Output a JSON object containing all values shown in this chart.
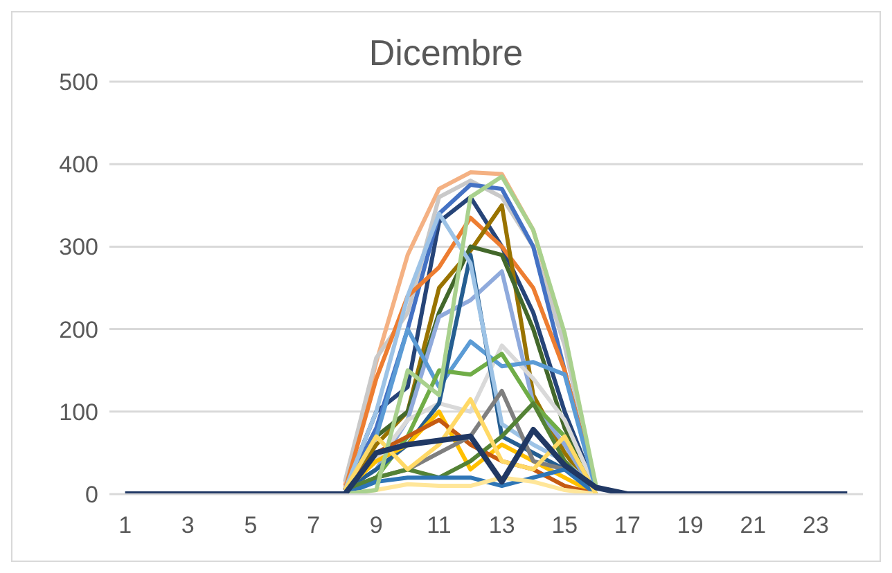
{
  "chart_data": {
    "type": "line",
    "title": "Dicembre",
    "x": [
      1,
      2,
      3,
      4,
      5,
      6,
      7,
      8,
      9,
      10,
      11,
      12,
      13,
      14,
      15,
      16,
      17,
      18,
      19,
      20,
      21,
      22,
      23,
      24
    ],
    "xlim": [
      0.5,
      24.5
    ],
    "xticks": [
      1,
      3,
      5,
      7,
      9,
      11,
      13,
      15,
      17,
      19,
      21,
      23
    ],
    "ylim": [
      0,
      500
    ],
    "yticks": [
      0,
      100,
      200,
      300,
      400,
      500
    ],
    "grid": "y",
    "marker": "none",
    "line_style": "solid",
    "series": [
      {
        "color": "#f4b183",
        "values": [
          null,
          null,
          null,
          null,
          null,
          null,
          null,
          10,
          160,
          290,
          370,
          390,
          388,
          320,
          190,
          5,
          null,
          null,
          null,
          null,
          null,
          null,
          null,
          null
        ]
      },
      {
        "color": "#c9c9c9",
        "values": [
          null,
          null,
          null,
          null,
          null,
          null,
          null,
          15,
          165,
          220,
          360,
          380,
          360,
          300,
          180,
          5,
          null,
          null,
          null,
          null,
          null,
          null,
          null,
          null
        ]
      },
      {
        "color": "#264478",
        "values": [
          null,
          null,
          null,
          null,
          null,
          null,
          null,
          5,
          100,
          130,
          330,
          360,
          300,
          220,
          100,
          5,
          null,
          null,
          null,
          null,
          null,
          null,
          null,
          null
        ]
      },
      {
        "color": "#4472c4",
        "values": [
          null,
          null,
          null,
          null,
          null,
          null,
          null,
          5,
          80,
          200,
          340,
          375,
          370,
          300,
          150,
          5,
          null,
          null,
          null,
          null,
          null,
          null,
          null,
          null
        ]
      },
      {
        "color": "#ed7d31",
        "values": [
          null,
          null,
          null,
          null,
          null,
          null,
          null,
          5,
          140,
          240,
          275,
          335,
          300,
          250,
          150,
          5,
          null,
          null,
          null,
          null,
          null,
          null,
          null,
          null
        ]
      },
      {
        "color": "#997300",
        "values": [
          null,
          null,
          null,
          null,
          null,
          null,
          null,
          5,
          60,
          100,
          250,
          295,
          350,
          120,
          50,
          0,
          null,
          null,
          null,
          null,
          null,
          null,
          null,
          null
        ]
      },
      {
        "color": "#43682b",
        "values": [
          null,
          null,
          null,
          null,
          null,
          null,
          null,
          5,
          70,
          100,
          220,
          300,
          290,
          200,
          80,
          5,
          null,
          null,
          null,
          null,
          null,
          null,
          null,
          null
        ]
      },
      {
        "color": "#8faadc",
        "values": [
          null,
          null,
          null,
          null,
          null,
          null,
          null,
          5,
          30,
          90,
          215,
          235,
          270,
          110,
          60,
          0,
          null,
          null,
          null,
          null,
          null,
          null,
          null,
          null
        ]
      },
      {
        "color": "#d9d9d9",
        "values": [
          null,
          null,
          null,
          null,
          null,
          null,
          null,
          5,
          40,
          90,
          110,
          100,
          180,
          140,
          90,
          5,
          null,
          null,
          null,
          null,
          null,
          null,
          null,
          null
        ]
      },
      {
        "color": "#5b9bd5",
        "values": [
          null,
          null,
          null,
          null,
          null,
          null,
          null,
          5,
          70,
          200,
          130,
          185,
          155,
          160,
          145,
          5,
          null,
          null,
          null,
          null,
          null,
          null,
          null,
          null
        ]
      },
      {
        "color": "#70ad47",
        "values": [
          null,
          null,
          null,
          null,
          null,
          null,
          null,
          5,
          20,
          70,
          150,
          145,
          170,
          110,
          70,
          0,
          null,
          null,
          null,
          null,
          null,
          null,
          null,
          null
        ]
      },
      {
        "color": "#255e91",
        "values": [
          null,
          null,
          null,
          null,
          null,
          null,
          null,
          5,
          30,
          60,
          110,
          290,
          70,
          50,
          30,
          5,
          null,
          null,
          null,
          null,
          null,
          null,
          null,
          null
        ]
      },
      {
        "color": "#9dc3e6",
        "values": [
          null,
          null,
          null,
          null,
          null,
          null,
          null,
          5,
          100,
          240,
          340,
          280,
          85,
          60,
          40,
          5,
          null,
          null,
          null,
          null,
          null,
          null,
          null,
          null
        ]
      },
      {
        "color": "#ffc000",
        "values": [
          null,
          null,
          null,
          null,
          null,
          null,
          null,
          5,
          40,
          60,
          100,
          30,
          60,
          40,
          20,
          0,
          null,
          null,
          null,
          null,
          null,
          null,
          null,
          null
        ]
      },
      {
        "color": "#c55a11",
        "values": [
          null,
          null,
          null,
          null,
          null,
          null,
          null,
          5,
          50,
          70,
          90,
          60,
          40,
          30,
          10,
          0,
          null,
          null,
          null,
          null,
          null,
          null,
          null,
          null
        ]
      },
      {
        "color": "#7f7f7f",
        "values": [
          null,
          null,
          null,
          null,
          null,
          null,
          null,
          5,
          20,
          30,
          50,
          70,
          125,
          40,
          30,
          0,
          null,
          null,
          null,
          null,
          null,
          null,
          null,
          null
        ]
      },
      {
        "color": "#548235",
        "values": [
          null,
          null,
          null,
          null,
          null,
          null,
          null,
          5,
          20,
          30,
          20,
          40,
          70,
          110,
          40,
          0,
          null,
          null,
          null,
          null,
          null,
          null,
          null,
          null
        ]
      },
      {
        "color": "#2e75b6",
        "values": [
          null,
          null,
          null,
          null,
          null,
          null,
          null,
          0,
          15,
          20,
          20,
          20,
          10,
          20,
          30,
          0,
          null,
          null,
          null,
          null,
          null,
          null,
          null,
          null
        ]
      },
      {
        "color": "#ffe699",
        "values": [
          null,
          null,
          null,
          null,
          null,
          null,
          null,
          0,
          5,
          12,
          10,
          10,
          20,
          15,
          5,
          0,
          null,
          null,
          null,
          null,
          null,
          null,
          null,
          null
        ]
      },
      {
        "color": "#ffd966",
        "values": [
          null,
          null,
          null,
          null,
          null,
          null,
          null,
          5,
          70,
          30,
          60,
          115,
          40,
          30,
          70,
          0,
          null,
          null,
          null,
          null,
          null,
          null,
          null,
          null
        ]
      },
      {
        "color": "#a9d18e",
        "values": [
          null,
          null,
          null,
          null,
          null,
          null,
          null,
          0,
          5,
          150,
          120,
          360,
          385,
          320,
          195,
          10,
          null,
          null,
          null,
          null,
          null,
          null,
          null,
          null
        ]
      },
      {
        "color": "#203864",
        "values": [
          0,
          0,
          0,
          0,
          0,
          0,
          0,
          0,
          50,
          60,
          65,
          70,
          15,
          78,
          35,
          8,
          0,
          0,
          0,
          0,
          0,
          0,
          0,
          0
        ]
      }
    ]
  }
}
